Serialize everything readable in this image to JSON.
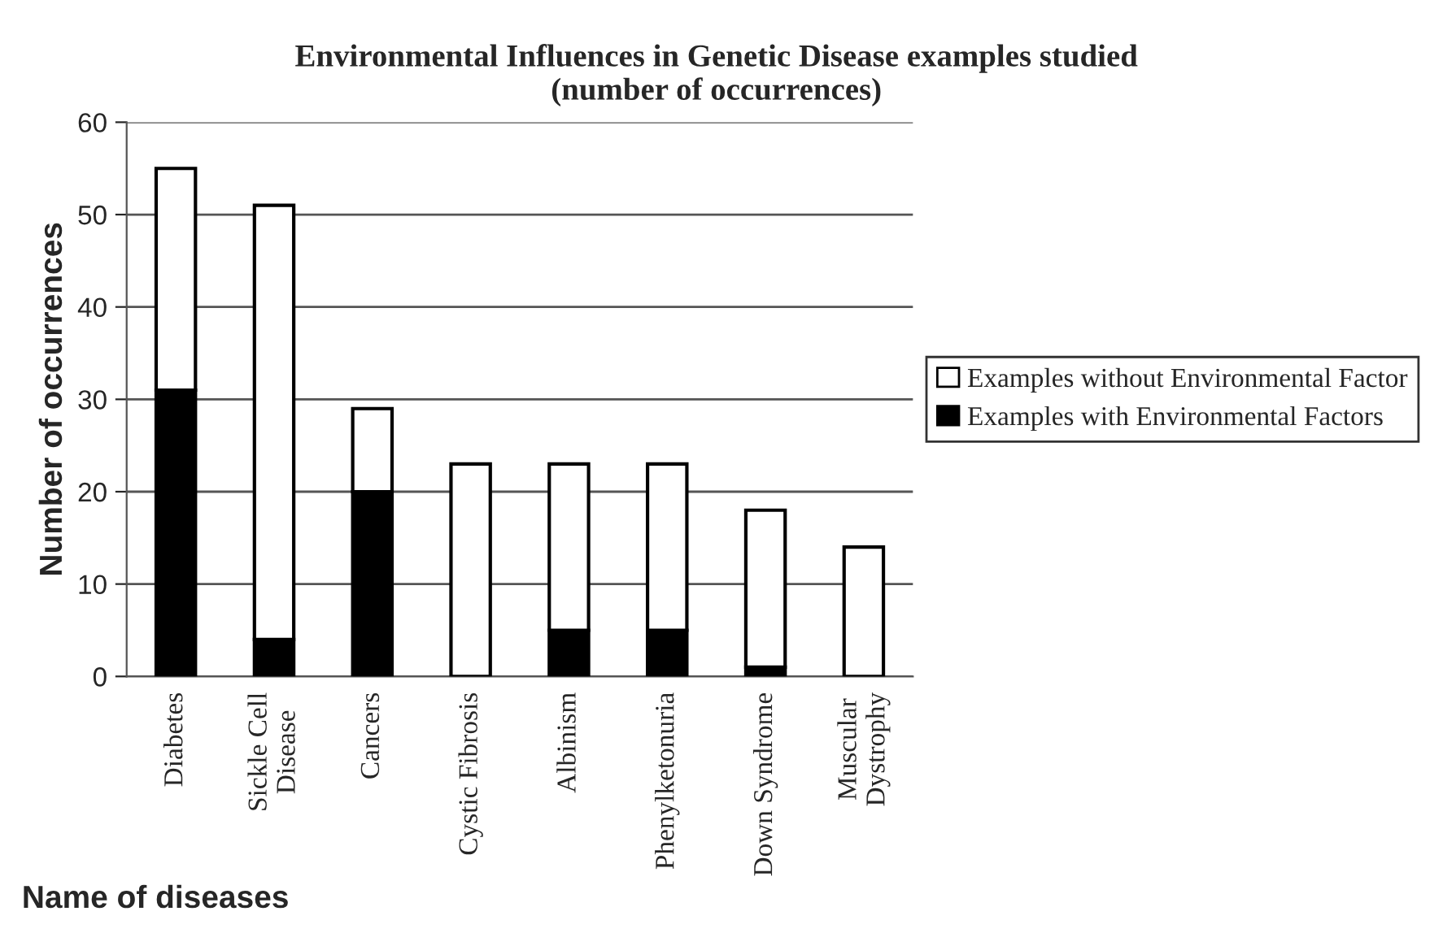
{
  "chart_data": {
    "type": "bar",
    "title": "Environmental Influences in Genetic Disease examples studied\n(number of occurrences)",
    "xlabel": "Name of diseases",
    "ylabel": "Number of occurrences",
    "categories": [
      "Diabetes",
      "Sickle Cell\nDisease",
      "Cancers",
      "Cystic Fibrosis",
      "Albinism",
      "Phenylketonuria",
      "Down Syndrome",
      "Muscular\nDystrophy"
    ],
    "stacked": true,
    "series": [
      {
        "name": "Examples with Environmental Factors",
        "color": "#000000",
        "values": [
          31,
          4,
          20,
          0,
          5,
          5,
          1,
          0
        ]
      },
      {
        "name": "Examples without Environmental Factor",
        "color": "#ffffff",
        "values": [
          24,
          47,
          9,
          23,
          18,
          18,
          17,
          14
        ]
      }
    ],
    "ylim": [
      0,
      60
    ],
    "yticks": [
      0,
      10,
      20,
      30,
      40,
      50,
      60
    ],
    "grid": "y",
    "legend": "right"
  }
}
